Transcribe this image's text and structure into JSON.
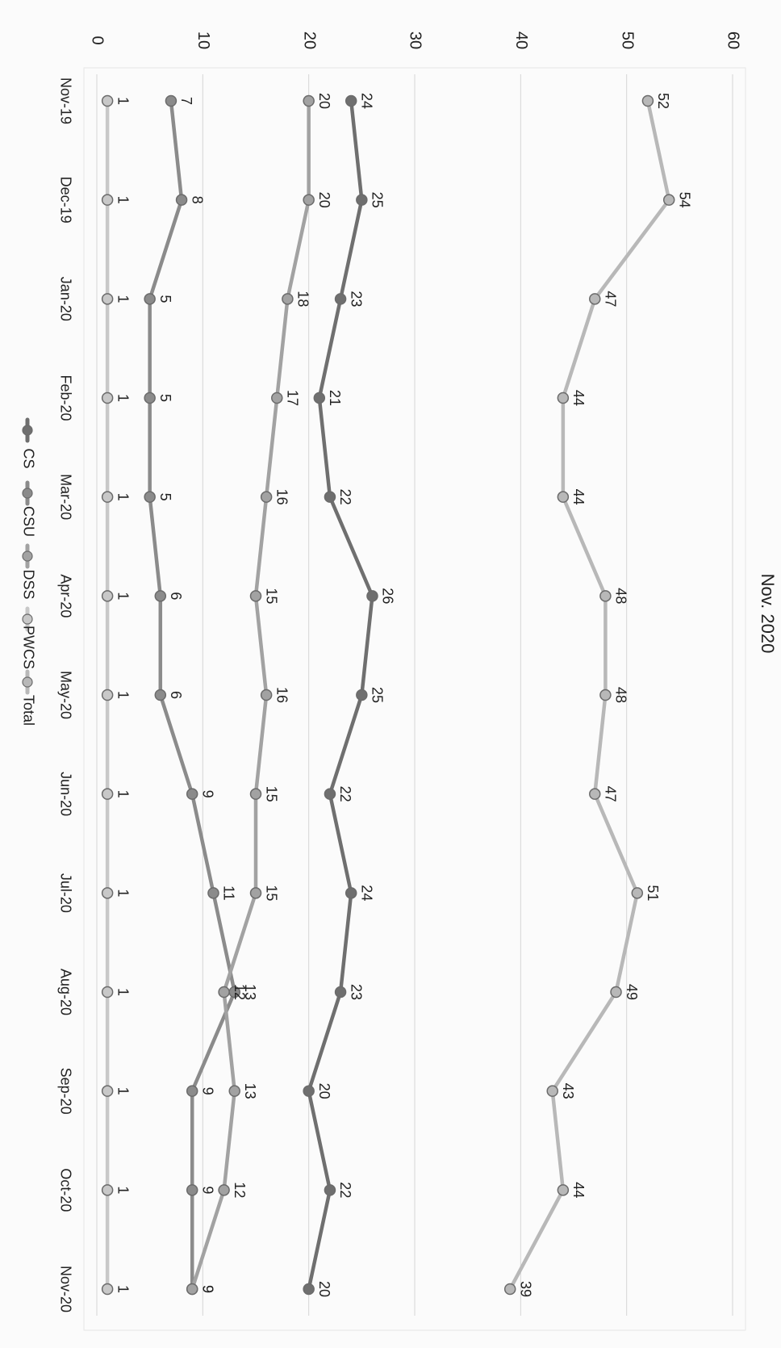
{
  "chart_data": {
    "type": "line",
    "title": "Nov. 2020",
    "xlabel": "",
    "ylabel": "",
    "categories": [
      "Nov-19",
      "Dec-19",
      "Jan-20",
      "Feb-20",
      "Mar-20",
      "Apr-20",
      "May-20",
      "Jun-20",
      "Jul-20",
      "Aug-20",
      "Sep-20",
      "Oct-20",
      "Nov-20"
    ],
    "ylim": [
      0,
      60
    ],
    "yticks": [
      0,
      10,
      20,
      30,
      40,
      50,
      60
    ],
    "grid": true,
    "legend_position": "bottom",
    "orientation": "rotated-90-clockwise",
    "series": [
      {
        "name": "CS",
        "color": "#6f6f6f",
        "values": [
          24,
          25,
          23,
          21,
          22,
          26,
          25,
          22,
          24,
          23,
          20,
          22,
          20
        ]
      },
      {
        "name": "CSU",
        "color": "#8b8b8b",
        "values": [
          7,
          8,
          5,
          5,
          5,
          6,
          6,
          9,
          11,
          13,
          9,
          9,
          9
        ]
      },
      {
        "name": "DSS",
        "color": "#a2a2a2",
        "values": [
          20,
          20,
          18,
          17,
          16,
          15,
          16,
          15,
          15,
          12,
          13,
          12,
          9
        ]
      },
      {
        "name": "PWCS",
        "color": "#c8c8c8",
        "values": [
          1,
          1,
          1,
          1,
          1,
          1,
          1,
          1,
          1,
          1,
          1,
          1,
          1
        ]
      },
      {
        "name": "Total",
        "color": "#b8b8b8",
        "values": [
          52,
          54,
          47,
          44,
          44,
          48,
          48,
          47,
          51,
          49,
          43,
          44,
          39
        ]
      }
    ]
  }
}
